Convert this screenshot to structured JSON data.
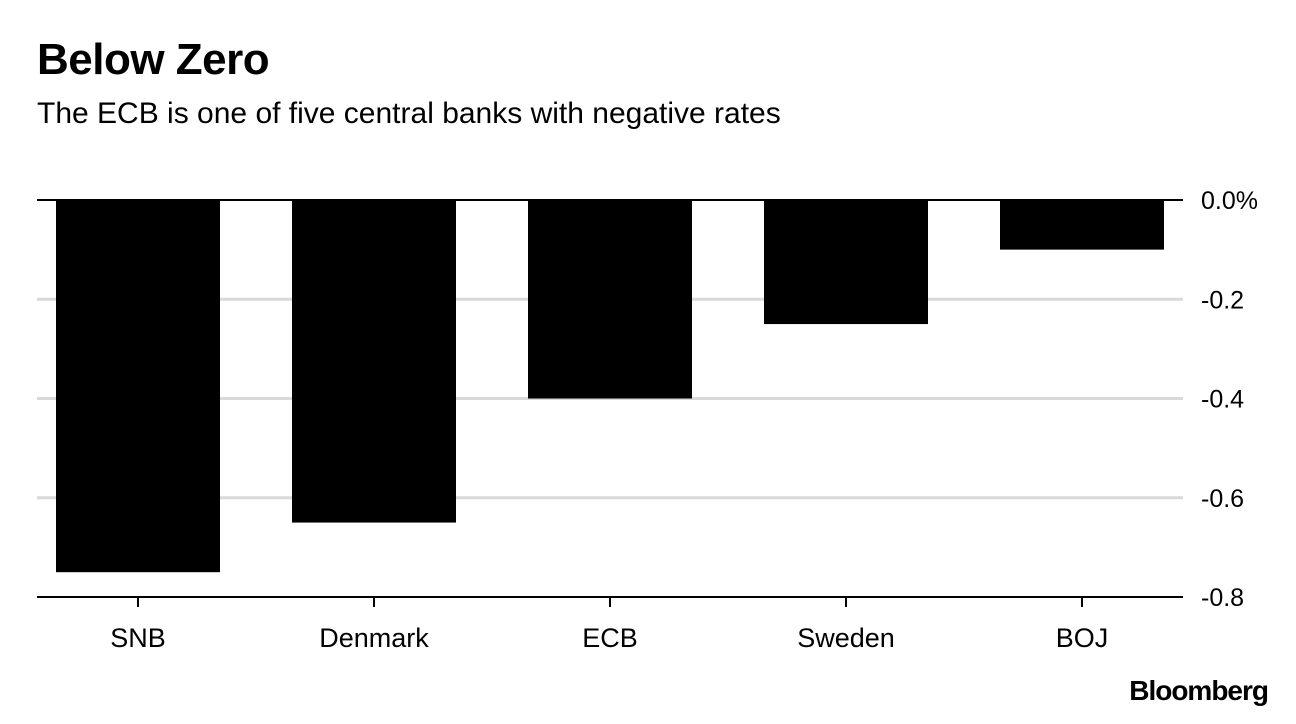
{
  "header": {
    "title": "Below Zero",
    "subtitle": "The ECB is one of five central banks with negative rates"
  },
  "footer": {
    "brand": "Bloomberg"
  },
  "colors": {
    "bar": "#000000",
    "grid": "#d9d9d9",
    "axis": "#000000"
  },
  "chart_data": {
    "type": "bar",
    "title": "Below Zero",
    "subtitle": "The ECB is one of five central banks with negative rates",
    "categories": [
      "SNB",
      "Denmark",
      "ECB",
      "Sweden",
      "BOJ"
    ],
    "values": [
      -0.75,
      -0.65,
      -0.4,
      -0.25,
      -0.1
    ],
    "xlabel": "",
    "ylabel": "",
    "ylim": [
      -0.8,
      0.0
    ],
    "yticks": [
      0.0,
      -0.2,
      -0.4,
      -0.6,
      -0.8
    ],
    "ytick_labels": [
      "0.0%",
      "-0.2",
      "-0.4",
      "-0.6",
      "-0.8"
    ],
    "grid": true,
    "y_axis_side": "right"
  }
}
